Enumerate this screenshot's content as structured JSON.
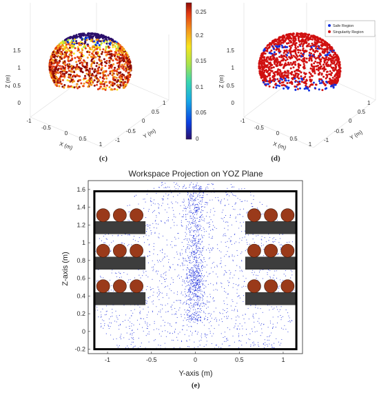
{
  "chart_data": [
    {
      "panel": "c",
      "type": "scatter",
      "caption": "(c)",
      "xlabel": "X (m)",
      "ylabel": "Y (m)",
      "zlabel": "Z (m)",
      "x_ticks": [
        "-1",
        "-0.5",
        "0",
        "0.5",
        "1"
      ],
      "y_ticks": [
        "-1",
        "-0.5",
        "0",
        "0.5",
        "1"
      ],
      "z_ticks": [
        "0",
        "0.5",
        "1",
        "1.5"
      ],
      "colorbar": {
        "min": 0,
        "max": 0.26,
        "ticks": [
          "0.25",
          "0.2",
          "0.15",
          "0.1",
          "0.05",
          "0"
        ]
      },
      "colormap": [
        "#2b0f6b",
        "#0b3ee0",
        "#17a7e6",
        "#39d6b0",
        "#a8e34c",
        "#f6e41e",
        "#f4961c",
        "#e23a12",
        "#8c0a06"
      ]
    },
    {
      "panel": "d",
      "type": "scatter",
      "caption": "(d)",
      "xlabel": "X (m)",
      "ylabel": "Y (m)",
      "zlabel": "Z (m)",
      "x_ticks": [
        "-1",
        "-0.5",
        "0",
        "0.5",
        "1"
      ],
      "y_ticks": [
        "-1",
        "-0.5",
        "0",
        "0.5",
        "1"
      ],
      "z_ticks": [
        "0",
        "0.5",
        "1",
        "1.5"
      ],
      "legend": [
        {
          "name": "Safe Region",
          "color": "#1030e0"
        },
        {
          "name": "Singularity Region",
          "color": "#d01010"
        }
      ],
      "legend_position": "top-right"
    },
    {
      "panel": "e",
      "type": "scatter",
      "caption": "(e)",
      "title": "Workspace Projection on YOZ Plane",
      "xlabel": "Y-axis (m)",
      "ylabel": "Z-axis (m)",
      "xlim": [
        -1.22,
        1.22
      ],
      "ylim": [
        -0.25,
        1.7
      ],
      "x_ticks": [
        -1,
        -0.5,
        0,
        0.5,
        1
      ],
      "y_ticks": [
        -0.2,
        0,
        0.2,
        0.4,
        0.6,
        0.8,
        1,
        1.2,
        1.4,
        1.6
      ],
      "point_color": "#2233dd",
      "boundary": {
        "y": [
          -1.15,
          1.15
        ],
        "z": [
          -0.2,
          1.58
        ]
      },
      "shelves": [
        {
          "y0": -1.15,
          "y1": -0.57,
          "z0": 1.1,
          "z1": 1.24
        },
        {
          "y0": -1.15,
          "y1": -0.57,
          "z0": 0.7,
          "z1": 0.84
        },
        {
          "y0": -1.15,
          "y1": -0.57,
          "z0": 0.3,
          "z1": 0.44
        },
        {
          "y0": 0.57,
          "y1": 1.15,
          "z0": 1.1,
          "z1": 1.24
        },
        {
          "y0": 0.57,
          "y1": 1.15,
          "z0": 0.7,
          "z1": 0.84
        },
        {
          "y0": 0.57,
          "y1": 1.15,
          "z0": 0.3,
          "z1": 0.44
        }
      ],
      "spheres": {
        "radius": 0.075,
        "y": [
          -1.05,
          -0.86,
          -0.67,
          0.67,
          0.86,
          1.05
        ],
        "z": [
          1.31,
          0.91,
          0.51
        ],
        "color": "#9a3a1a"
      }
    }
  ]
}
